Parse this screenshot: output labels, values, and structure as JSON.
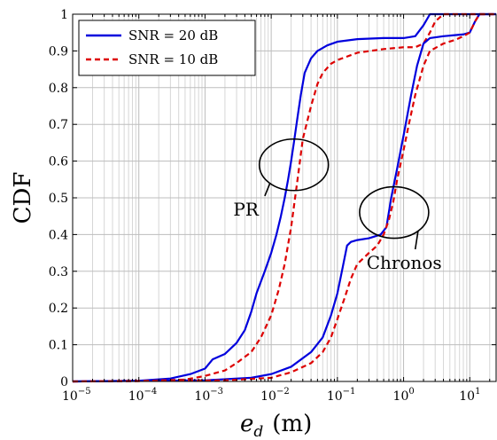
{
  "chart_data": {
    "type": "line",
    "xscale": "log",
    "xlim": [
      1e-05,
      25
    ],
    "ylim": [
      0,
      1
    ],
    "grid": true,
    "legend_position": "top-left",
    "xlabel_main": "e",
    "xlabel_sub": "d",
    "xlabel_unit": "(m)",
    "ylabel": "CDF",
    "x_ticks": [
      {
        "value": 1e-05,
        "base": "10",
        "exp": "−5"
      },
      {
        "value": 0.0001,
        "base": "10",
        "exp": "−4"
      },
      {
        "value": 0.001,
        "base": "10",
        "exp": "−3"
      },
      {
        "value": 0.01,
        "base": "10",
        "exp": "−2"
      },
      {
        "value": 0.1,
        "base": "10",
        "exp": "−1"
      },
      {
        "value": 1,
        "base": "10",
        "exp": "0"
      },
      {
        "value": 10,
        "base": "10",
        "exp": "1"
      }
    ],
    "y_ticks": [
      {
        "value": 0,
        "label": "0"
      },
      {
        "value": 0.1,
        "label": "0.1"
      },
      {
        "value": 0.2,
        "label": "0.2"
      },
      {
        "value": 0.3,
        "label": "0.3"
      },
      {
        "value": 0.4,
        "label": "0.4"
      },
      {
        "value": 0.5,
        "label": "0.5"
      },
      {
        "value": 0.6,
        "label": "0.6"
      },
      {
        "value": 0.7,
        "label": "0.7"
      },
      {
        "value": 0.8,
        "label": "0.8"
      },
      {
        "value": 0.9,
        "label": "0.9"
      },
      {
        "value": 1,
        "label": "1"
      }
    ],
    "legend": [
      {
        "name": "SNR = 20 dB",
        "color": "#0000dd",
        "dash": "solid"
      },
      {
        "name": "SNR = 10 dB",
        "color": "#dd0000",
        "dash": "dashed"
      }
    ],
    "annotations": [
      {
        "label": "PR",
        "ellipse_center": [
          0.022,
          0.59
        ],
        "pointer": [
          0.008,
          0.505
        ]
      },
      {
        "label": "Chronos",
        "ellipse_center": [
          0.72,
          0.46
        ],
        "pointer": [
          1.5,
          0.36
        ]
      }
    ],
    "series": [
      {
        "name": "SNR = 20 dB",
        "group": "PR",
        "color": "#0000dd",
        "dash": "solid",
        "points": [
          [
            1e-05,
            0
          ],
          [
            0.0001,
            0.002
          ],
          [
            0.0003,
            0.008
          ],
          [
            0.0006,
            0.02
          ],
          [
            0.001,
            0.035
          ],
          [
            0.0013,
            0.06
          ],
          [
            0.002,
            0.075
          ],
          [
            0.003,
            0.105
          ],
          [
            0.004,
            0.14
          ],
          [
            0.005,
            0.19
          ],
          [
            0.006,
            0.24
          ],
          [
            0.008,
            0.3
          ],
          [
            0.01,
            0.35
          ],
          [
            0.012,
            0.4
          ],
          [
            0.014,
            0.45
          ],
          [
            0.016,
            0.5
          ],
          [
            0.018,
            0.55
          ],
          [
            0.02,
            0.6
          ],
          [
            0.022,
            0.65
          ],
          [
            0.025,
            0.72
          ],
          [
            0.028,
            0.78
          ],
          [
            0.032,
            0.84
          ],
          [
            0.04,
            0.88
          ],
          [
            0.05,
            0.9
          ],
          [
            0.07,
            0.915
          ],
          [
            0.1,
            0.925
          ],
          [
            0.2,
            0.932
          ],
          [
            0.5,
            0.935
          ],
          [
            1,
            0.935
          ],
          [
            1.5,
            0.94
          ],
          [
            2,
            0.97
          ],
          [
            2.5,
            1
          ],
          [
            25,
            1
          ]
        ]
      },
      {
        "name": "SNR = 10 dB",
        "group": "PR",
        "color": "#dd0000",
        "dash": "dashed",
        "points": [
          [
            1e-05,
            0
          ],
          [
            0.0001,
            0.001
          ],
          [
            0.0005,
            0.005
          ],
          [
            0.001,
            0.015
          ],
          [
            0.002,
            0.03
          ],
          [
            0.003,
            0.05
          ],
          [
            0.005,
            0.08
          ],
          [
            0.007,
            0.12
          ],
          [
            0.01,
            0.18
          ],
          [
            0.013,
            0.25
          ],
          [
            0.016,
            0.32
          ],
          [
            0.02,
            0.42
          ],
          [
            0.025,
            0.55
          ],
          [
            0.03,
            0.66
          ],
          [
            0.04,
            0.75
          ],
          [
            0.05,
            0.81
          ],
          [
            0.06,
            0.84
          ],
          [
            0.08,
            0.865
          ],
          [
            0.1,
            0.875
          ],
          [
            0.2,
            0.895
          ],
          [
            0.5,
            0.905
          ],
          [
            1,
            0.91
          ],
          [
            1.5,
            0.91
          ],
          [
            2,
            0.92
          ],
          [
            2.5,
            0.95
          ],
          [
            3,
            0.98
          ],
          [
            4,
            1
          ],
          [
            25,
            1
          ]
        ]
      },
      {
        "name": "SNR = 20 dB",
        "group": "Chronos",
        "color": "#0000dd",
        "dash": "solid",
        "points": [
          [
            1e-05,
            0
          ],
          [
            0.001,
            0.003
          ],
          [
            0.005,
            0.01
          ],
          [
            0.01,
            0.02
          ],
          [
            0.02,
            0.04
          ],
          [
            0.04,
            0.08
          ],
          [
            0.06,
            0.12
          ],
          [
            0.08,
            0.18
          ],
          [
            0.1,
            0.24
          ],
          [
            0.12,
            0.31
          ],
          [
            0.14,
            0.37
          ],
          [
            0.16,
            0.38
          ],
          [
            0.2,
            0.385
          ],
          [
            0.3,
            0.39
          ],
          [
            0.45,
            0.4
          ],
          [
            0.55,
            0.42
          ],
          [
            0.65,
            0.5
          ],
          [
            0.8,
            0.58
          ],
          [
            1,
            0.67
          ],
          [
            1.3,
            0.78
          ],
          [
            1.6,
            0.86
          ],
          [
            2,
            0.92
          ],
          [
            2.5,
            0.935
          ],
          [
            4,
            0.94
          ],
          [
            8,
            0.945
          ],
          [
            10,
            0.95
          ],
          [
            12,
            0.98
          ],
          [
            14,
            1
          ],
          [
            25,
            1
          ]
        ]
      },
      {
        "name": "SNR = 10 dB",
        "group": "Chronos",
        "color": "#dd0000",
        "dash": "dashed",
        "points": [
          [
            1e-05,
            0
          ],
          [
            0.002,
            0.003
          ],
          [
            0.01,
            0.01
          ],
          [
            0.02,
            0.025
          ],
          [
            0.04,
            0.05
          ],
          [
            0.06,
            0.08
          ],
          [
            0.08,
            0.12
          ],
          [
            0.1,
            0.17
          ],
          [
            0.13,
            0.23
          ],
          [
            0.16,
            0.28
          ],
          [
            0.2,
            0.32
          ],
          [
            0.3,
            0.35
          ],
          [
            0.4,
            0.37
          ],
          [
            0.5,
            0.4
          ],
          [
            0.6,
            0.44
          ],
          [
            0.7,
            0.49
          ],
          [
            0.8,
            0.55
          ],
          [
            1,
            0.63
          ],
          [
            1.2,
            0.7
          ],
          [
            1.5,
            0.78
          ],
          [
            2,
            0.86
          ],
          [
            2.5,
            0.9
          ],
          [
            4,
            0.92
          ],
          [
            6,
            0.93
          ],
          [
            8,
            0.94
          ],
          [
            10,
            0.95
          ],
          [
            12,
            0.98
          ],
          [
            14,
            1
          ],
          [
            25,
            1
          ]
        ]
      }
    ]
  }
}
